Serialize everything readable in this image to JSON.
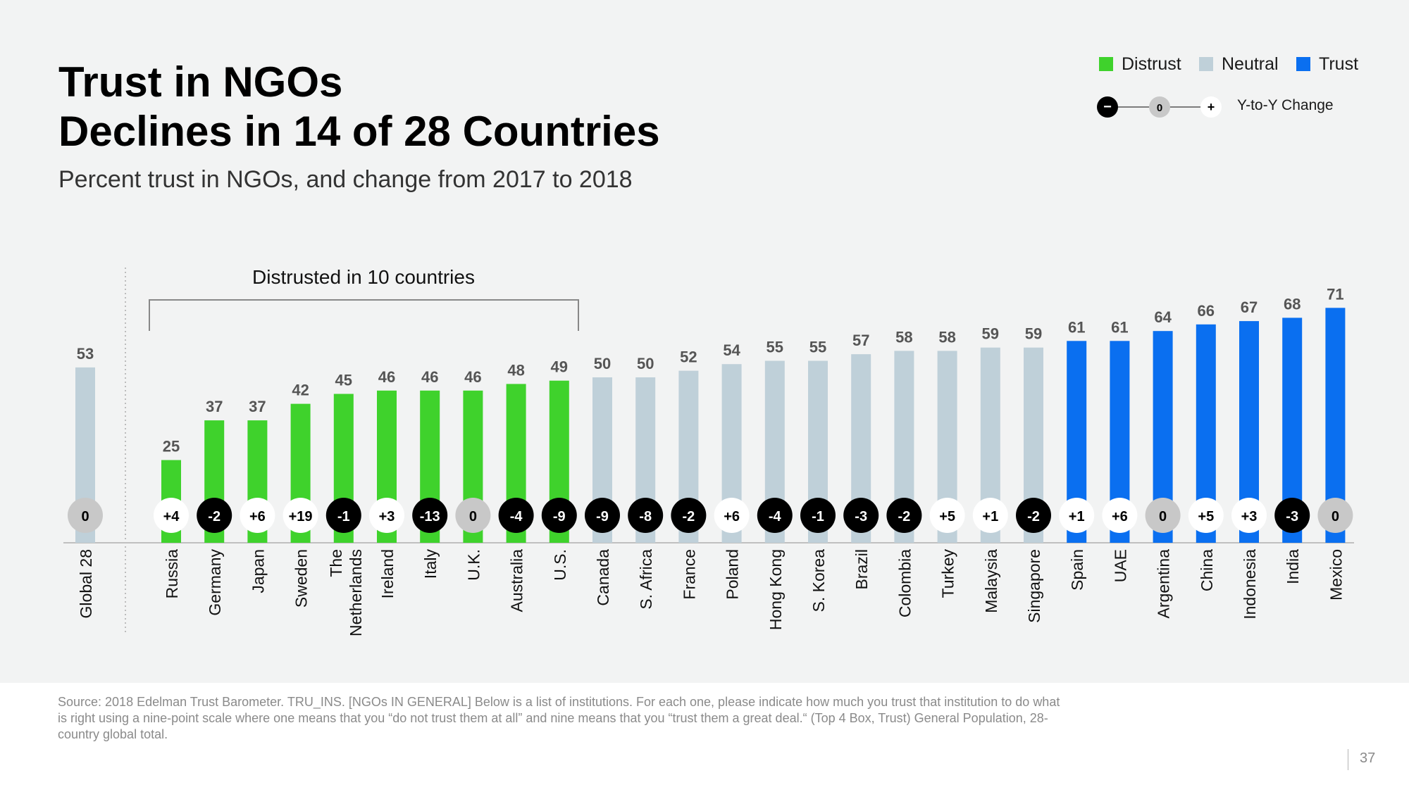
{
  "title_lines": [
    "Trust in NGOs",
    "Declines in 14 of 28 Countries"
  ],
  "subtitle": "Percent trust in NGOs, and change from 2017 to 2018",
  "legend": {
    "items": [
      {
        "label": "Distrust",
        "color": "#3fd22c"
      },
      {
        "label": "Neutral",
        "color": "#bfd0d9"
      },
      {
        "label": "Trust",
        "color": "#0a6ff0"
      }
    ],
    "yoy": {
      "minus": "−",
      "zero": "0",
      "plus": "+",
      "label": "Y-to-Y Change"
    }
  },
  "chart_data": {
    "type": "bar",
    "title": "",
    "xlabel": "",
    "ylabel": "",
    "ylim": [
      0,
      100
    ],
    "grid": false,
    "annotation": "Distrusted in 10  countries",
    "categories": [
      "Global 28",
      "Russia",
      "Germany",
      "Japan",
      "Sweden",
      "The Netherlands",
      "Ireland",
      "Italy",
      "U.K.",
      "Australia",
      "U.S.",
      "Canada",
      "S. Africa",
      "France",
      "Poland",
      "Hong Kong",
      "S. Korea",
      "Brazil",
      "Colombia",
      "Turkey",
      "Malaysia",
      "Singapore",
      "Spain",
      "UAE",
      "Argentina",
      "China",
      "Indonesia",
      "India",
      "Mexico"
    ],
    "values": [
      53,
      25,
      37,
      37,
      42,
      45,
      46,
      46,
      46,
      48,
      49,
      50,
      50,
      52,
      54,
      55,
      55,
      57,
      58,
      58,
      59,
      59,
      61,
      61,
      64,
      66,
      67,
      68,
      71
    ],
    "trust_level": [
      "Neutral",
      "Distrust",
      "Distrust",
      "Distrust",
      "Distrust",
      "Distrust",
      "Distrust",
      "Distrust",
      "Distrust",
      "Distrust",
      "Distrust",
      "Neutral",
      "Neutral",
      "Neutral",
      "Neutral",
      "Neutral",
      "Neutral",
      "Neutral",
      "Neutral",
      "Neutral",
      "Neutral",
      "Neutral",
      "Trust",
      "Trust",
      "Trust",
      "Trust",
      "Trust",
      "Trust",
      "Trust"
    ],
    "yoy_change": [
      "0",
      "+4",
      "-2",
      "+6",
      "+19",
      "-1",
      "+3",
      "-13",
      "0",
      "-4",
      "-9",
      "-9",
      "-8",
      "-2",
      "+6",
      "-4",
      "-1",
      "-3",
      "-2",
      "+5",
      "+1",
      "-2",
      "+1",
      "+6",
      "0",
      "+5",
      "+3",
      "-3",
      "0"
    ]
  },
  "footnote": "Source: 2018 Edelman Trust Barometer. TRU_INS. [NGOs IN GENERAL] Below is a list of institutions. For each one, please indicate how much you trust that institution to do what is right using a nine-point scale where one means that you “do not trust them at all” and nine means that you “trust them a great deal.“ (Top 4 Box, Trust)  General Population, 28-country global total.",
  "page_number": "37"
}
